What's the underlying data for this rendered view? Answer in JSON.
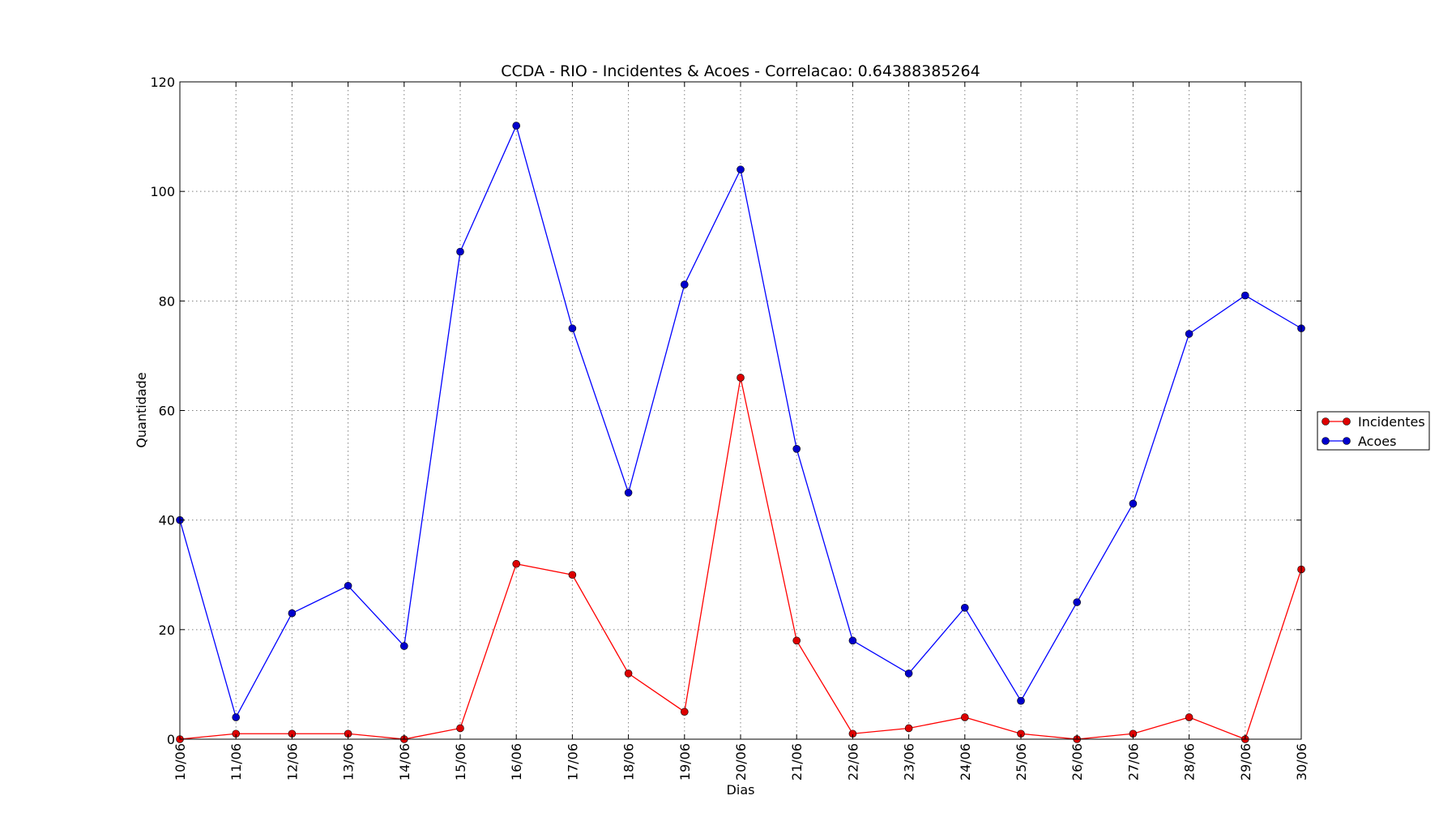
{
  "chart_data": {
    "type": "line",
    "title": "CCDA - RIO - Incidentes & Acoes - Correlacao: 0.64388385264",
    "xlabel": "Dias",
    "ylabel": "Quantidade",
    "ylim": [
      0,
      120
    ],
    "yticks": [
      "0",
      "20",
      "40",
      "60",
      "80",
      "100",
      "120"
    ],
    "grid": true,
    "legend_position": "right",
    "categories": [
      "10/06",
      "11/06",
      "12/06",
      "13/06",
      "14/06",
      "15/06",
      "16/06",
      "17/06",
      "18/06",
      "19/06",
      "20/06",
      "21/06",
      "22/06",
      "23/06",
      "24/06",
      "25/06",
      "26/06",
      "27/06",
      "28/06",
      "29/06",
      "30/06"
    ],
    "series": [
      {
        "name": "Incidentes",
        "color": "#ff0000",
        "marker_color": "#dd0000",
        "values": [
          0,
          1,
          1,
          1,
          0,
          2,
          32,
          30,
          12,
          5,
          66,
          18,
          1,
          2,
          4,
          1,
          0,
          1,
          4,
          0,
          31
        ]
      },
      {
        "name": "Acoes",
        "color": "#0000ff",
        "marker_color": "#0000cc",
        "values": [
          40,
          4,
          23,
          28,
          17,
          89,
          112,
          75,
          45,
          83,
          104,
          53,
          18,
          12,
          24,
          7,
          25,
          43,
          74,
          81,
          75
        ]
      }
    ]
  }
}
